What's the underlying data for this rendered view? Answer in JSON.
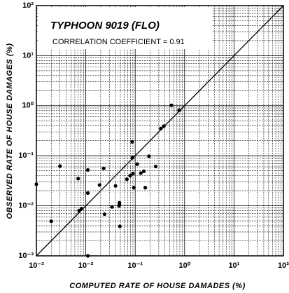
{
  "chart_data": {
    "type": "scatter",
    "title": "TYPHOON 9019 (FLO)",
    "annotation": "CORRELATION COEFFICIENT = 0.91",
    "xlabel": "COMPUTED RATE OF HOUSE DAMADES (%)",
    "ylabel": "OBSERVED RATE OF HOUSE DAMAGES (%)",
    "xscale": "log",
    "yscale": "log",
    "xlim": [
      0.001,
      100
    ],
    "ylim": [
      0.001,
      100
    ],
    "xticks": [
      {
        "value": 0.001,
        "label": "10⁻³"
      },
      {
        "value": 0.01,
        "label": "10⁻²"
      },
      {
        "value": 0.1,
        "label": "10⁻¹"
      },
      {
        "value": 1,
        "label": "10⁰"
      },
      {
        "value": 10,
        "label": "10¹"
      },
      {
        "value": 100,
        "label": "10²"
      }
    ],
    "yticks": [
      {
        "value": 0.001,
        "label": "10⁻³"
      },
      {
        "value": 0.01,
        "label": "10⁻²"
      },
      {
        "value": 0.1,
        "label": "10⁻¹"
      },
      {
        "value": 1,
        "label": "10⁰"
      },
      {
        "value": 10,
        "label": "10¹"
      },
      {
        "value": 100,
        "label": "10²"
      }
    ],
    "grid": true,
    "minor_grid": true,
    "diagonal": true,
    "color": "#000000",
    "x": [
      0.001,
      0.002,
      0.003,
      0.007,
      0.0073,
      0.0082,
      0.011,
      0.011,
      0.011,
      0.019,
      0.023,
      0.024,
      0.034,
      0.04,
      0.047,
      0.048,
      0.048,
      0.049,
      0.068,
      0.079,
      0.087,
      0.088,
      0.09,
      0.094,
      0.11,
      0.13,
      0.15,
      0.16,
      0.19,
      0.26,
      0.33,
      0.38,
      0.54,
      0.78
    ],
    "y": [
      0.027,
      0.0049,
      0.062,
      0.035,
      0.008,
      0.0088,
      0.052,
      0.018,
      0.001,
      0.026,
      0.056,
      0.0068,
      0.0095,
      0.025,
      0.01,
      0.0107,
      0.0115,
      0.0039,
      0.034,
      0.04,
      0.19,
      0.091,
      0.044,
      0.023,
      0.068,
      0.045,
      0.049,
      0.023,
      0.098,
      0.061,
      0.35,
      0.39,
      1.02,
      0.81
    ]
  }
}
